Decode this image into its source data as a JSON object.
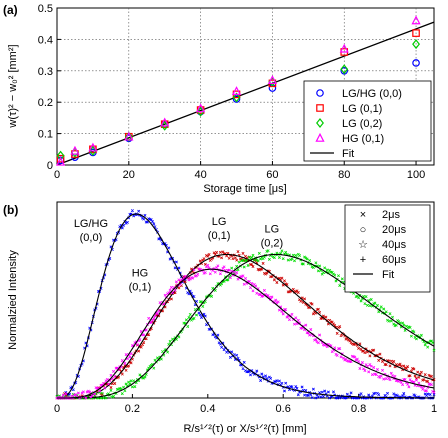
{
  "chart_data": [
    {
      "panel": "(a)",
      "type": "scatter",
      "xlabel": "Storage time [μs]",
      "ylabel": "w(τ)² − w₀² [mm²]",
      "xlim": [
        0,
        105
      ],
      "ylim": [
        0,
        0.5
      ],
      "xticks": [
        "0",
        "20",
        "40",
        "60",
        "80",
        "100"
      ],
      "yticks": [
        "0",
        "0.1",
        "0.2",
        "0.3",
        "0.4",
        "0.5"
      ],
      "grid": true,
      "legend_position": "lower-right",
      "series": [
        {
          "name": "LG/HG (0,0)",
          "marker": "circle",
          "color": "#0000ff",
          "x": [
            1,
            5,
            10,
            20,
            30,
            40,
            50,
            60,
            80,
            100
          ],
          "y": [
            0.015,
            0.025,
            0.04,
            0.085,
            0.13,
            0.17,
            0.21,
            0.245,
            0.3,
            0.325
          ]
        },
        {
          "name": "LG (0,1)",
          "marker": "square",
          "color": "#ff0000",
          "x": [
            1,
            5,
            10,
            20,
            30,
            40,
            50,
            60,
            80,
            100
          ],
          "y": [
            0.02,
            0.035,
            0.05,
            0.09,
            0.13,
            0.175,
            0.225,
            0.26,
            0.36,
            0.42
          ]
        },
        {
          "name": "LG (0,2)",
          "marker": "diamond",
          "color": "#00cc00",
          "x": [
            1,
            5,
            10,
            20,
            30,
            40,
            50,
            60,
            80,
            100
          ],
          "y": [
            0.03,
            0.04,
            0.045,
            0.09,
            0.125,
            0.17,
            0.215,
            0.265,
            0.305,
            0.385
          ]
        },
        {
          "name": "HG (0,1)",
          "marker": "triangle",
          "color": "#ff00ff",
          "x": [
            1,
            5,
            10,
            20,
            30,
            40,
            50,
            60,
            80,
            100
          ],
          "y": [
            0.01,
            0.045,
            0.055,
            0.09,
            0.135,
            0.18,
            0.235,
            0.27,
            0.37,
            0.46
          ]
        }
      ],
      "fit": {
        "name": "Fit",
        "color": "#000000",
        "x": [
          0,
          105
        ],
        "y": [
          0.0,
          0.455
        ]
      }
    },
    {
      "panel": "(b)",
      "type": "line",
      "xlabel": "R/s¹ᐟ²(τ) or X/s¹ᐟ²(τ) [mm]",
      "ylabel": "Normalzied Intensity",
      "xlim": [
        0,
        1
      ],
      "xticks": [
        "0",
        "0.2",
        "0.4",
        "0.6",
        "0.8",
        "1"
      ],
      "grid": false,
      "legend_position": "top-right",
      "legend": [
        {
          "name": "2μs",
          "marker": "×"
        },
        {
          "name": "20μs",
          "marker": "○"
        },
        {
          "name": "40μs",
          "marker": "☆"
        },
        {
          "name": "60μs",
          "marker": "+"
        },
        {
          "name": "Fit",
          "marker": "line"
        }
      ],
      "curves": [
        {
          "label_line1": "LG/HG",
          "label_line2": "(0,0)",
          "color": "#0000ff",
          "peak_x": 0.21,
          "peak_y": 1.0
        },
        {
          "label_line1": "LG",
          "label_line2": "(0,1)",
          "color": "#cc0000",
          "peak_x": 0.45,
          "peak_y": 0.78
        },
        {
          "label_line1": "LG",
          "label_line2": "(0,2)",
          "color": "#00dd00",
          "peak_x": 0.58,
          "peak_y": 0.78
        },
        {
          "label_line1": "HG",
          "label_line2": "(0,1)",
          "color": "#ff00ff",
          "peak_x": 0.41,
          "peak_y": 0.7
        }
      ]
    }
  ]
}
